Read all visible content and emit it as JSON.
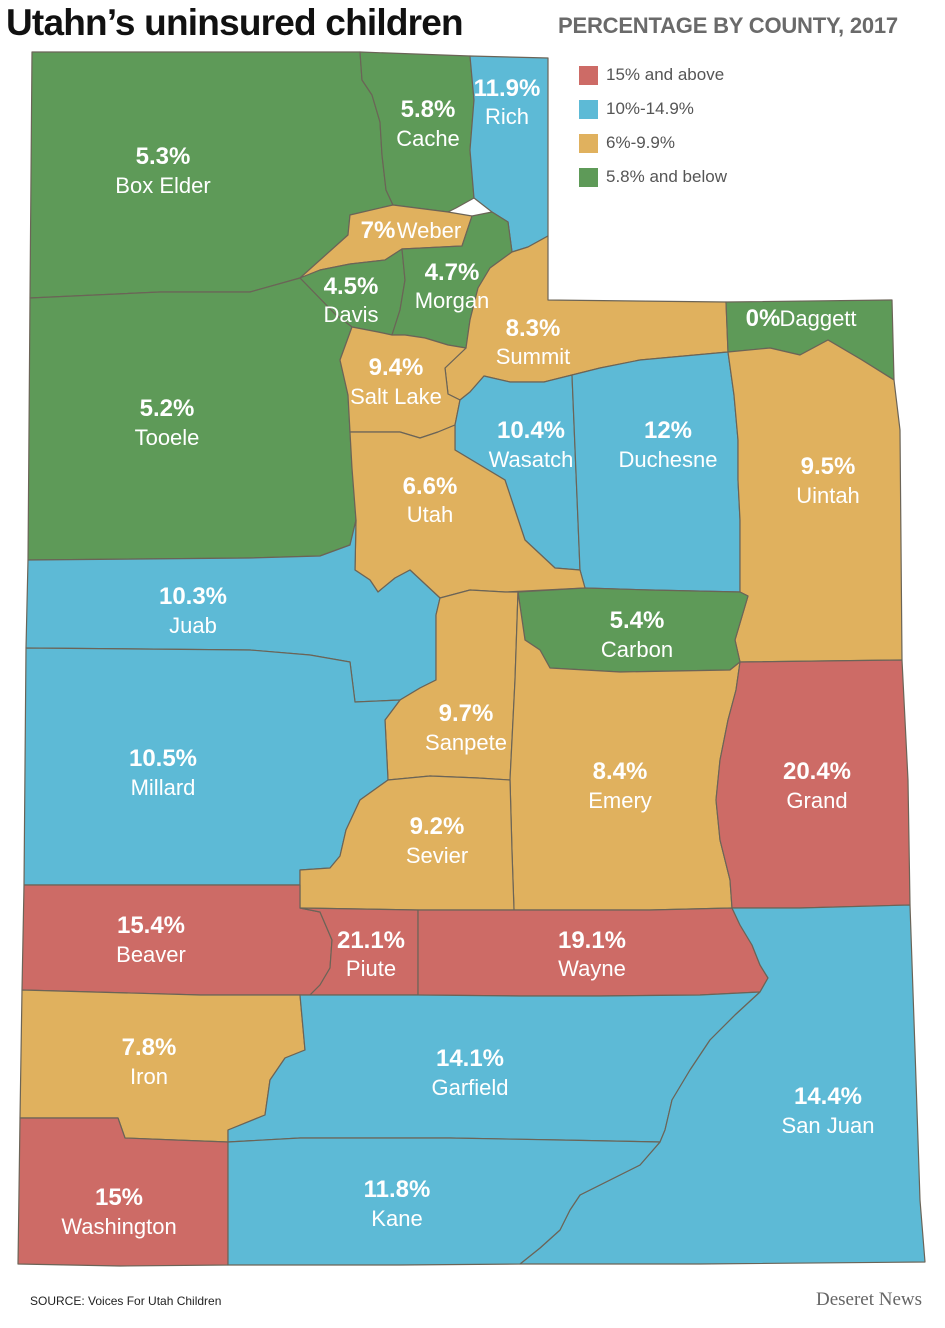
{
  "title": "Utahn’s uninsured children",
  "subtitle": "PERCENTAGE BY COUNTY, 2017",
  "colors": {
    "red": "#cd6b66",
    "blue": "#5dbad6",
    "gold": "#e0b15e",
    "green": "#5e9a58"
  },
  "legend": [
    {
      "label": "15% and above",
      "color": "#cd6b66"
    },
    {
      "label": "10%-14.9%",
      "color": "#5dbad6"
    },
    {
      "label": "6%-9.9%",
      "color": "#e0b15e"
    },
    {
      "label": "5.8% and below",
      "color": "#5e9a58"
    }
  ],
  "counties": [
    {
      "name": "Box Elder",
      "pct": "5.3%",
      "value": 5.3,
      "category": "green"
    },
    {
      "name": "Cache",
      "pct": "5.8%",
      "value": 5.8,
      "category": "green"
    },
    {
      "name": "Rich",
      "pct": "11.9%",
      "value": 11.9,
      "category": "blue"
    },
    {
      "name": "Weber",
      "pct": "7%",
      "value": 7,
      "category": "gold"
    },
    {
      "name": "Davis",
      "pct": "4.5%",
      "value": 4.5,
      "category": "green"
    },
    {
      "name": "Morgan",
      "pct": "4.7%",
      "value": 4.7,
      "category": "green"
    },
    {
      "name": "Summit",
      "pct": "8.3%",
      "value": 8.3,
      "category": "gold"
    },
    {
      "name": "Daggett",
      "pct": "0%",
      "value": 0,
      "category": "green"
    },
    {
      "name": "Tooele",
      "pct": "5.2%",
      "value": 5.2,
      "category": "green"
    },
    {
      "name": "Salt Lake",
      "pct": "9.4%",
      "value": 9.4,
      "category": "gold"
    },
    {
      "name": "Wasatch",
      "pct": "10.4%",
      "value": 10.4,
      "category": "blue"
    },
    {
      "name": "Duchesne",
      "pct": "12%",
      "value": 12,
      "category": "blue"
    },
    {
      "name": "Uintah",
      "pct": "9.5%",
      "value": 9.5,
      "category": "gold"
    },
    {
      "name": "Utah",
      "pct": "6.6%",
      "value": 6.6,
      "category": "gold"
    },
    {
      "name": "Juab",
      "pct": "10.3%",
      "value": 10.3,
      "category": "blue"
    },
    {
      "name": "Carbon",
      "pct": "5.4%",
      "value": 5.4,
      "category": "green"
    },
    {
      "name": "Sanpete",
      "pct": "9.7%",
      "value": 9.7,
      "category": "gold"
    },
    {
      "name": "Millard",
      "pct": "10.5%",
      "value": 10.5,
      "category": "blue"
    },
    {
      "name": "Emery",
      "pct": "8.4%",
      "value": 8.4,
      "category": "gold"
    },
    {
      "name": "Grand",
      "pct": "20.4%",
      "value": 20.4,
      "category": "red"
    },
    {
      "name": "Sevier",
      "pct": "9.2%",
      "value": 9.2,
      "category": "gold"
    },
    {
      "name": "Beaver",
      "pct": "15.4%",
      "value": 15.4,
      "category": "red"
    },
    {
      "name": "Piute",
      "pct": "21.1%",
      "value": 21.1,
      "category": "red"
    },
    {
      "name": "Wayne",
      "pct": "19.1%",
      "value": 19.1,
      "category": "red"
    },
    {
      "name": "Iron",
      "pct": "7.8%",
      "value": 7.8,
      "category": "gold"
    },
    {
      "name": "Garfield",
      "pct": "14.1%",
      "value": 14.1,
      "category": "blue"
    },
    {
      "name": "San Juan",
      "pct": "14.4%",
      "value": 14.4,
      "category": "blue"
    },
    {
      "name": "Washington",
      "pct": "15%",
      "value": 15,
      "category": "red"
    },
    {
      "name": "Kane",
      "pct": "11.8%",
      "value": 11.8,
      "category": "blue"
    }
  ],
  "source": "SOURCE: Voices For Utah Children",
  "brand": "Deseret News"
}
